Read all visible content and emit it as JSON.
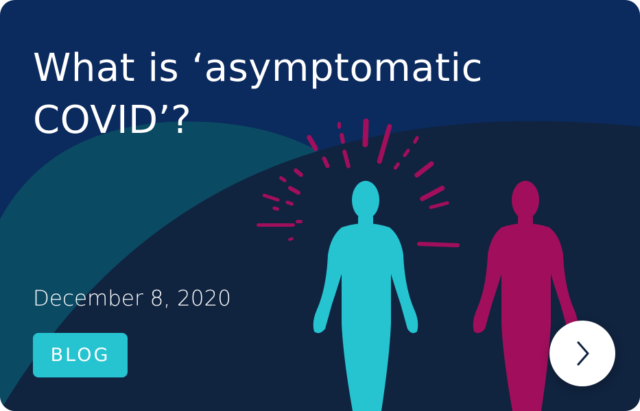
{
  "card": {
    "title_lines": [
      "What is ‘asymptomatic",
      "COVID’?"
    ],
    "date": "December 8, 2020",
    "category": "BLOG",
    "next_icon": "chevron-right-icon"
  },
  "colors": {
    "background": "#0b2a5e",
    "dark_navy": "#10233f",
    "teal_panel": "#0b4a63",
    "cyan_figure": "#26c3d0",
    "magenta_figure": "#a10f5c",
    "tag_background": "#26c3d0"
  }
}
